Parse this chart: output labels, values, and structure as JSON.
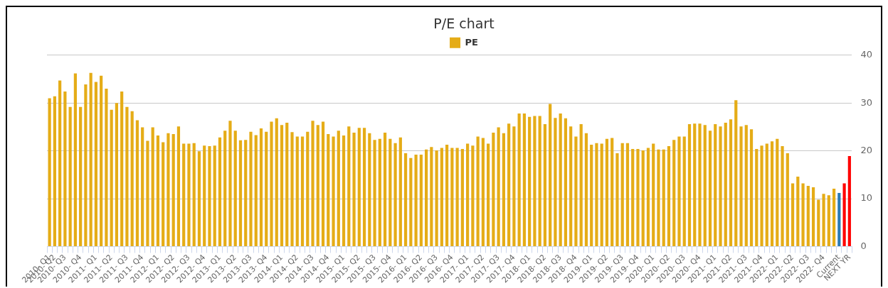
{
  "chart_data": {
    "type": "bar",
    "title": "P/E chart",
    "categories": [
      "2010- Q1",
      "2010- Q2",
      null,
      "2010- Q3",
      null,
      null,
      "2010- Q4",
      null,
      null,
      "2011- Q1",
      null,
      null,
      "2011- Q2",
      null,
      null,
      "2011- Q3",
      null,
      null,
      "2011- Q4",
      null,
      null,
      "2012- Q1",
      null,
      null,
      "2012- Q2",
      null,
      null,
      "2012- Q3",
      null,
      null,
      "2012- Q4",
      null,
      null,
      "2013- Q1",
      null,
      null,
      "2013- Q2",
      null,
      null,
      "2013- Q3",
      null,
      null,
      "2013- Q4",
      null,
      null,
      "2014- Q1",
      null,
      null,
      "2014- Q2",
      null,
      null,
      "2014- Q3",
      null,
      null,
      "2014- Q4",
      null,
      null,
      "2015- Q1",
      null,
      null,
      "2015- Q2",
      null,
      null,
      "2015- Q3",
      null,
      null,
      "2015- Q4",
      null,
      null,
      "2016- Q1",
      null,
      null,
      "2016- Q2",
      null,
      null,
      "2016- Q3",
      null,
      null,
      "2016- Q4",
      null,
      null,
      "2017- Q1",
      null,
      null,
      "2017- Q2",
      null,
      null,
      "2017- Q3",
      null,
      null,
      "2017- Q4",
      null,
      null,
      "2018- Q1",
      null,
      null,
      "2018- Q2",
      null,
      null,
      "2018- Q3",
      null,
      null,
      "2018- Q4",
      null,
      null,
      "2019- Q1",
      null,
      null,
      "2019- Q2",
      null,
      null,
      "2019- Q3",
      null,
      null,
      "2019- Q4",
      null,
      null,
      "2020- Q1",
      null,
      null,
      "2020- Q2",
      null,
      null,
      "2020- Q3",
      null,
      null,
      "2020- Q4",
      null,
      null,
      "2021- Q1",
      null,
      null,
      "2021- Q2",
      null,
      null,
      "2021- Q3",
      null,
      null,
      "2021- Q4",
      null,
      null,
      "2022- Q1",
      null,
      null,
      "2022- Q2",
      null,
      null,
      "2022- Q3",
      null,
      null,
      "2022- Q4",
      null,
      null,
      "Current",
      null,
      "NEXT YR"
    ],
    "series": [
      {
        "name": "PE",
        "color": "#e5ac17",
        "values": [
          31.0,
          31.4,
          34.7,
          32.4,
          29.2,
          36.2,
          29.2,
          33.9,
          36.3,
          34.4,
          35.7,
          33.0,
          28.6,
          30.0,
          32.4,
          29.2,
          28.3,
          26.4,
          24.9,
          22.1,
          24.9,
          23.2,
          21.8,
          23.7,
          23.5,
          25.1,
          21.5,
          21.5,
          21.6,
          19.9,
          21.1,
          21.0,
          21.1,
          22.8,
          24.2,
          26.3,
          24.2,
          22.2,
          22.3,
          24.0,
          23.3,
          24.7,
          24.0,
          26.1,
          26.8,
          25.4,
          25.9,
          23.9,
          23.0,
          23.0,
          24.0,
          26.3,
          25.4,
          26.1,
          23.5,
          23.0,
          24.2,
          23.2,
          25.1,
          23.8,
          24.8,
          24.8,
          23.7,
          22.3,
          22.5,
          23.8,
          22.5,
          21.6,
          22.8,
          19.5,
          18.5,
          19.2,
          19.2,
          20.3,
          20.8,
          20.1,
          20.6,
          21.3,
          20.6,
          20.6,
          20.4,
          21.5,
          21.1,
          23.0,
          22.7,
          21.5,
          23.8,
          24.9,
          23.7,
          25.7,
          25.1,
          27.8,
          27.8,
          27.1,
          27.3,
          27.3,
          25.6,
          29.8,
          26.9,
          27.8,
          26.8,
          25.1,
          23.0,
          25.6,
          23.7,
          21.3,
          21.6,
          21.5,
          22.5,
          22.7,
          19.5,
          21.6,
          21.6,
          20.4,
          20.4,
          20.1,
          20.6,
          21.5,
          20.3,
          20.3,
          21.0,
          22.3,
          23.0,
          23.0,
          25.6,
          25.7,
          25.7,
          25.4,
          24.2,
          25.6,
          25.1,
          25.9,
          26.6,
          30.6,
          25.1,
          25.4,
          24.5,
          20.4,
          21.1,
          21.5,
          22.0,
          22.5,
          21.0,
          19.5,
          13.2,
          14.6,
          13.2,
          12.7,
          12.4,
          9.8,
          11.0,
          10.7,
          12.1,
          11.2,
          13.2,
          18.9
        ],
        "colors": [
          "#e5ac17",
          "#e5ac17",
          "#e5ac17",
          "#e5ac17",
          "#e5ac17",
          "#e5ac17",
          "#e5ac17",
          "#e5ac17",
          "#e5ac17",
          "#e5ac17",
          "#e5ac17",
          "#e5ac17",
          "#e5ac17",
          "#e5ac17",
          "#e5ac17",
          "#e5ac17",
          "#e5ac17",
          "#e5ac17",
          "#e5ac17",
          "#e5ac17",
          "#e5ac17",
          "#e5ac17",
          "#e5ac17",
          "#e5ac17",
          "#e5ac17",
          "#e5ac17",
          "#e5ac17",
          "#e5ac17",
          "#e5ac17",
          "#e5ac17",
          "#e5ac17",
          "#e5ac17",
          "#e5ac17",
          "#e5ac17",
          "#e5ac17",
          "#e5ac17",
          "#e5ac17",
          "#e5ac17",
          "#e5ac17",
          "#e5ac17",
          "#e5ac17",
          "#e5ac17",
          "#e5ac17",
          "#e5ac17",
          "#e5ac17",
          "#e5ac17",
          "#e5ac17",
          "#e5ac17",
          "#e5ac17",
          "#e5ac17",
          "#e5ac17",
          "#e5ac17",
          "#e5ac17",
          "#e5ac17",
          "#e5ac17",
          "#e5ac17",
          "#e5ac17",
          "#e5ac17",
          "#e5ac17",
          "#e5ac17",
          "#e5ac17",
          "#e5ac17",
          "#e5ac17",
          "#e5ac17",
          "#e5ac17",
          "#e5ac17",
          "#e5ac17",
          "#e5ac17",
          "#e5ac17",
          "#e5ac17",
          "#e5ac17",
          "#e5ac17",
          "#e5ac17",
          "#e5ac17",
          "#e5ac17",
          "#e5ac17",
          "#e5ac17",
          "#e5ac17",
          "#e5ac17",
          "#e5ac17",
          "#e5ac17",
          "#e5ac17",
          "#e5ac17",
          "#e5ac17",
          "#e5ac17",
          "#e5ac17",
          "#e5ac17",
          "#e5ac17",
          "#e5ac17",
          "#e5ac17",
          "#e5ac17",
          "#e5ac17",
          "#e5ac17",
          "#e5ac17",
          "#e5ac17",
          "#e5ac17",
          "#e5ac17",
          "#e5ac17",
          "#e5ac17",
          "#e5ac17",
          "#e5ac17",
          "#e5ac17",
          "#e5ac17",
          "#e5ac17",
          "#e5ac17",
          "#e5ac17",
          "#e5ac17",
          "#e5ac17",
          "#e5ac17",
          "#e5ac17",
          "#e5ac17",
          "#e5ac17",
          "#e5ac17",
          "#e5ac17",
          "#e5ac17",
          "#e5ac17",
          "#e5ac17",
          "#e5ac17",
          "#e5ac17",
          "#e5ac17",
          "#e5ac17",
          "#e5ac17",
          "#e5ac17",
          "#e5ac17",
          "#e5ac17",
          "#e5ac17",
          "#e5ac17",
          "#e5ac17",
          "#e5ac17",
          "#e5ac17",
          "#e5ac17",
          "#e5ac17",
          "#e5ac17",
          "#e5ac17",
          "#e5ac17",
          "#e5ac17",
          "#e5ac17",
          "#e5ac17",
          "#e5ac17",
          "#e5ac17",
          "#e5ac17",
          "#e5ac17",
          "#e5ac17",
          "#e5ac17",
          "#e5ac17",
          "#e5ac17",
          "#e5ac17",
          "#e5ac17",
          "#e5ac17",
          "#e5ac17",
          "#e5ac17",
          "#e5ac17",
          "#e5ac17",
          "#2b7bb5",
          "#ff0000",
          "#ff0000"
        ]
      }
    ],
    "ylim": [
      0,
      40
    ],
    "yticks": [
      0,
      10,
      20,
      30,
      40
    ],
    "grid": "y",
    "legend": "top"
  }
}
